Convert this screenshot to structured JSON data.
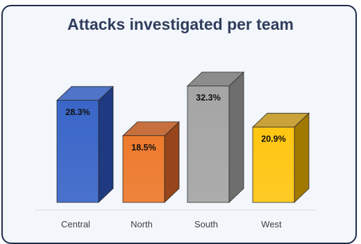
{
  "chart_data": {
    "type": "bar",
    "title": "Attacks investigated per team",
    "categories": [
      "Central",
      "North",
      "South",
      "West"
    ],
    "values": [
      28.3,
      18.5,
      32.3,
      20.9
    ],
    "value_labels": [
      "28.3%",
      "18.5%",
      "32.3%",
      "20.9%"
    ],
    "unit": "%",
    "xlabel": "",
    "ylabel": "",
    "ylim": [
      0,
      32.3
    ],
    "grid": false,
    "legend": "none",
    "style": "3d-column",
    "colors": [
      {
        "front": "#3a66c8",
        "side": "#1f3a80",
        "top": "#4f74c8"
      },
      {
        "front": "#ee7a2c",
        "side": "#96461a",
        "top": "#c7703e"
      },
      {
        "front": "#a5a5a5",
        "side": "#6e6e6e",
        "top": "#8c8c8c"
      },
      {
        "front": "#ffc612",
        "side": "#a27900",
        "top": "#c9a23a"
      }
    ]
  }
}
